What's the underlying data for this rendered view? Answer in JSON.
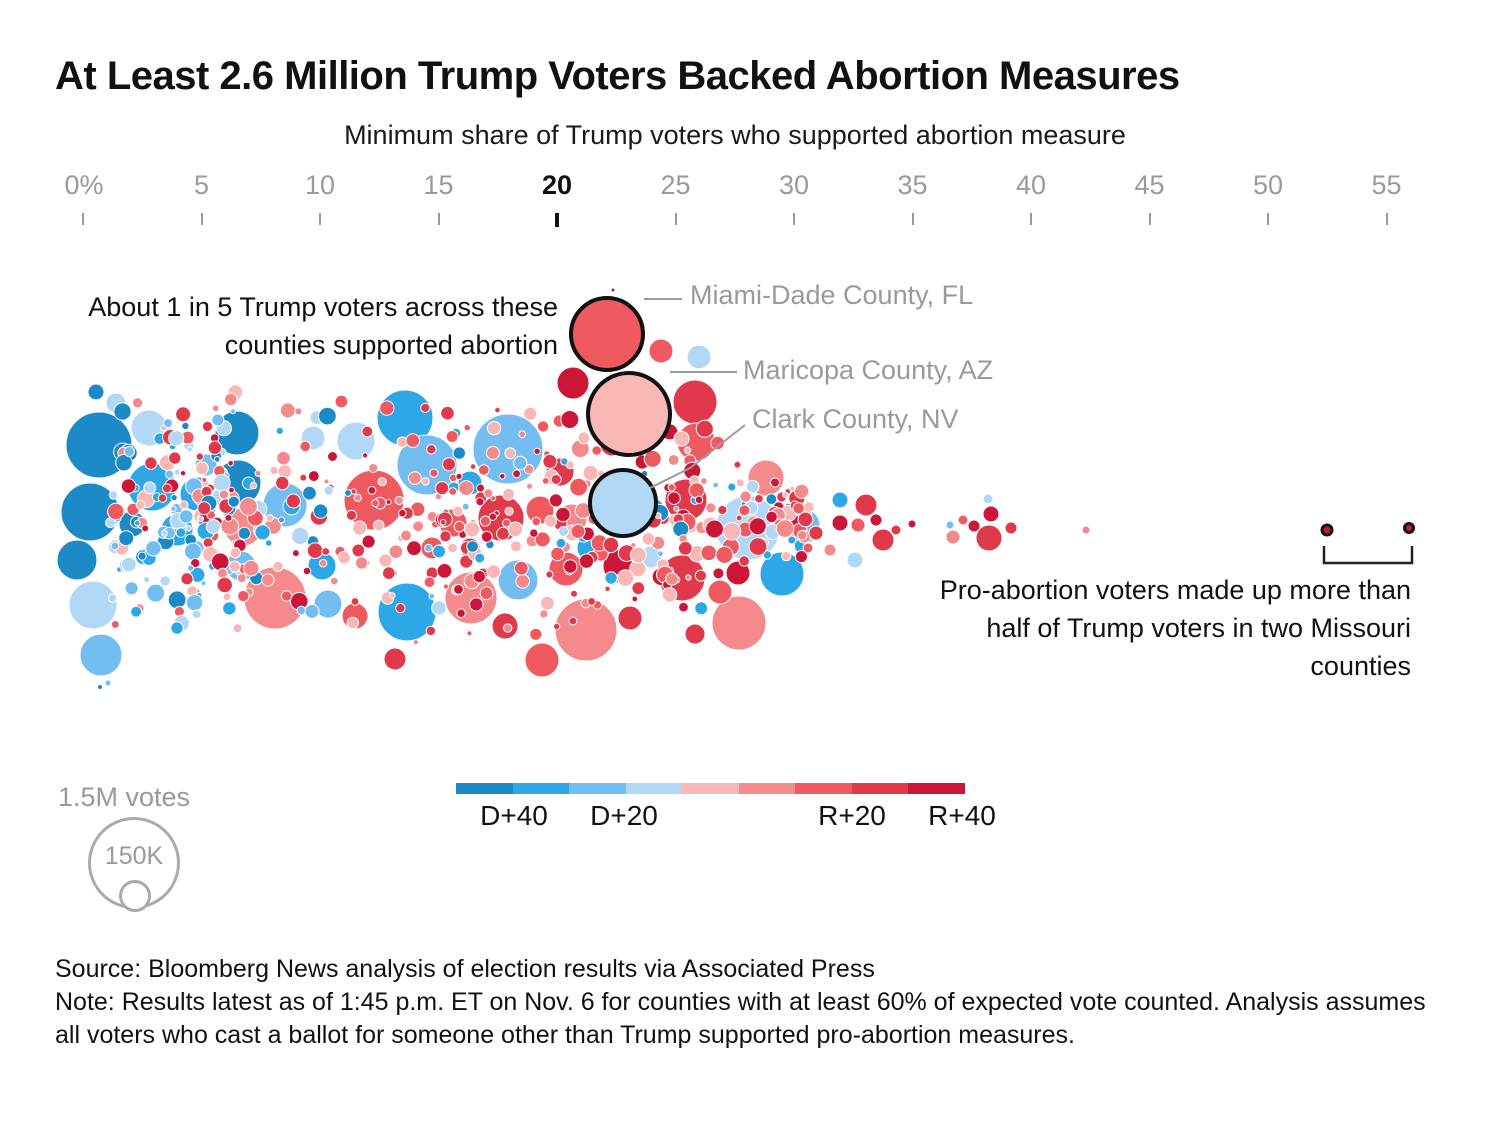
{
  "title": "At Least 2.6 Million Trump Voters Backed Abortion Measures",
  "subtitle": "Minimum share of Trump voters who supported abortion measure",
  "annotations": {
    "left_note": "About 1 in 5 Trump voters across these counties supported abortion",
    "right_note": "Pro-abortion voters made up more than half of Trump voters in two Missouri counties",
    "miami": "Miami-Dade County, FL",
    "maricopa": "Maricopa County, AZ",
    "clark": "Clark County, NV"
  },
  "size_legend": {
    "title": "1.5M votes",
    "small_label": "150K"
  },
  "color_legend": {
    "labels": [
      "D+40",
      "D+20",
      "R+20",
      "R+40"
    ],
    "colors": [
      "#1b8ac6",
      "#2ea7e6",
      "#74bdf1",
      "#b3d8f6",
      "#f9b7b5",
      "#f48a8b",
      "#ef5a61",
      "#e0394b",
      "#cb1638"
    ]
  },
  "footer": {
    "source": "Source: Bloomberg News analysis of election results via Associated Press",
    "note": "Note: Results latest as of 1:45 p.m. ET on Nov. 6 for counties with at least 60% of expected vote counted. Analysis assumes all voters who cast a ballot for someone other than Trump supported pro-abortion measures."
  },
  "chart_data": {
    "type": "scatter",
    "title": "At Least 2.6 Million Trump Voters Backed Abortion Measures",
    "xlabel": "Minimum share of Trump voters who supported abortion measure",
    "x_ticks": [
      "0%",
      "5",
      "10",
      "15",
      "20",
      "25",
      "30",
      "35",
      "40",
      "45",
      "50",
      "55"
    ],
    "x_highlight": "20",
    "xlim": [
      0,
      55
    ],
    "series": [
      {
        "name": "Miami-Dade County, FL",
        "points": [
          {
            "x": 22.5,
            "votes": 600000,
            "margin": "R+10"
          }
        ]
      },
      {
        "name": "Maricopa County, AZ",
        "points": [
          {
            "x": 23,
            "votes": 1000000,
            "margin": "R+5"
          }
        ]
      },
      {
        "name": "Clark County, NV",
        "points": [
          {
            "x": 22.5,
            "votes": 750000,
            "margin": "D+5"
          }
        ]
      },
      {
        "name": "Missouri counties",
        "points": [
          {
            "x": 52.5,
            "votes": 3000,
            "margin": "R+40"
          },
          {
            "x": 56,
            "votes": 2000,
            "margin": "R+40"
          }
        ]
      }
    ]
  }
}
